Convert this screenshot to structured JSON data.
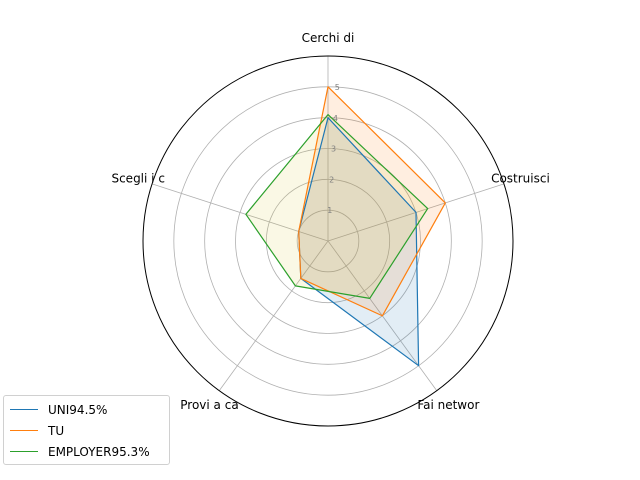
{
  "chart_data": {
    "type": "radar",
    "categories": [
      "Cerchi di",
      "Costruisci",
      "Fai networ",
      "Provi a ca",
      "Scegli i c"
    ],
    "rmax": 6,
    "radial_ticks": [
      "1",
      "2",
      "3",
      "4",
      "5"
    ],
    "grid": true,
    "legend_position": "lower-left",
    "series": [
      {
        "name": "UNI94.5%",
        "values": [
          4.0,
          3.0,
          5.0,
          1.5,
          1.0
        ],
        "color": "#1f77b4",
        "fill": "#1f77b4"
      },
      {
        "name": "TU",
        "values": [
          5.0,
          4.0,
          3.0,
          1.5,
          1.0
        ],
        "color": "#ff7f0e",
        "fill": "#ff7f0e"
      },
      {
        "name": "EMPLOYER95.3%",
        "values": [
          4.1,
          3.4,
          2.3,
          1.8,
          2.8
        ],
        "color": "#2ca02c",
        "fill": "#dcc838"
      }
    ]
  }
}
